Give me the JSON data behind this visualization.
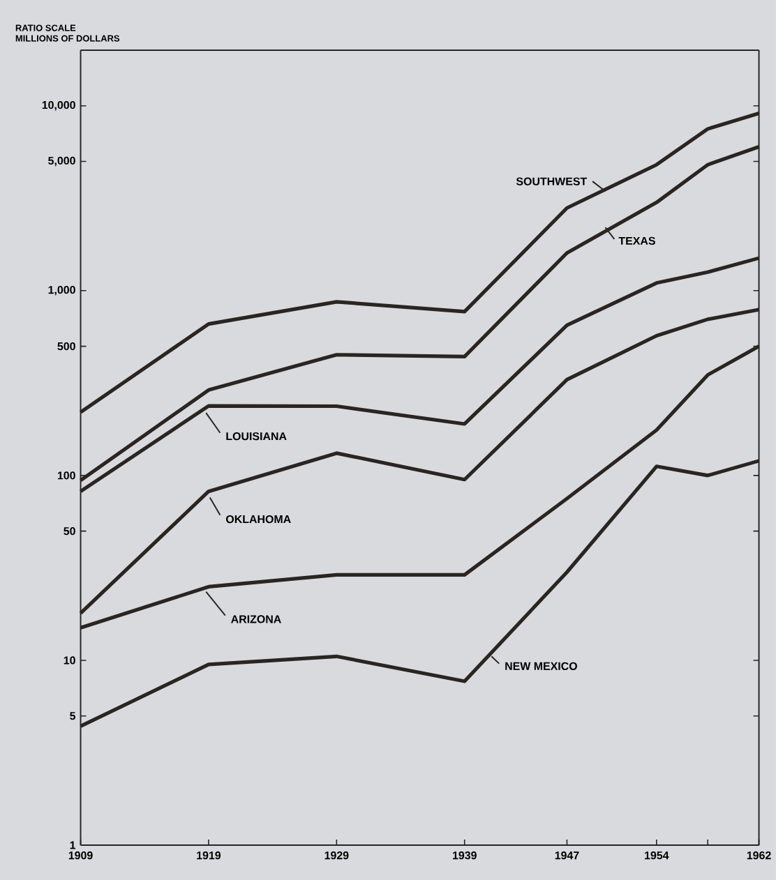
{
  "chart_data": {
    "type": "line",
    "ylabel": "MILLIONS OF DOLLARS",
    "annotations": [
      "RATIO SCALE"
    ],
    "log": "y",
    "grid": false,
    "legend": "center",
    "marker": "none",
    "line_style": "solid",
    "x": [
      1909,
      1919,
      1929,
      1939,
      1947,
      1954,
      1958,
      1962
    ],
    "xlim": [
      1909,
      1962
    ],
    "xticks": [
      1909,
      1919,
      1929,
      1939,
      1947,
      1954,
      {
        "value": 1958,
        "label": null
      },
      1962
    ],
    "ylim": [
      1,
      20000
    ],
    "yticks": [
      1,
      5,
      10,
      50,
      100,
      500,
      {
        "value": 1000,
        "label": "1,000"
      },
      {
        "value": 5000,
        "label": "5,000"
      },
      {
        "value": 10000,
        "label": "10,000"
      }
    ],
    "series": [
      {
        "name": "SOUTHWEST",
        "color": "#2a2520",
        "values": [
          220,
          660,
          870,
          770,
          2800,
          4800,
          7500,
          9100
        ]
      },
      {
        "name": "TEXAS",
        "color": "#2a2520",
        "values": [
          94,
          290,
          450,
          440,
          1600,
          3000,
          4800,
          6000
        ]
      },
      {
        "name": "LOUISIANA",
        "color": "#2a2520",
        "values": [
          82,
          238,
          237,
          190,
          650,
          1100,
          1260,
          1500
        ]
      },
      {
        "name": "OKLAHOMA",
        "color": "#2a2520",
        "values": [
          18,
          82,
          132,
          95,
          330,
          570,
          700,
          790
        ]
      },
      {
        "name": "ARIZONA",
        "color": "#2a2520",
        "values": [
          15,
          25,
          29,
          29,
          75,
          176,
          350,
          500
        ]
      },
      {
        "name": "NEW MEXICO",
        "color": "#2a2520",
        "values": [
          4.4,
          9.5,
          10.5,
          7.7,
          30,
          112,
          100,
          120
        ]
      }
    ]
  }
}
